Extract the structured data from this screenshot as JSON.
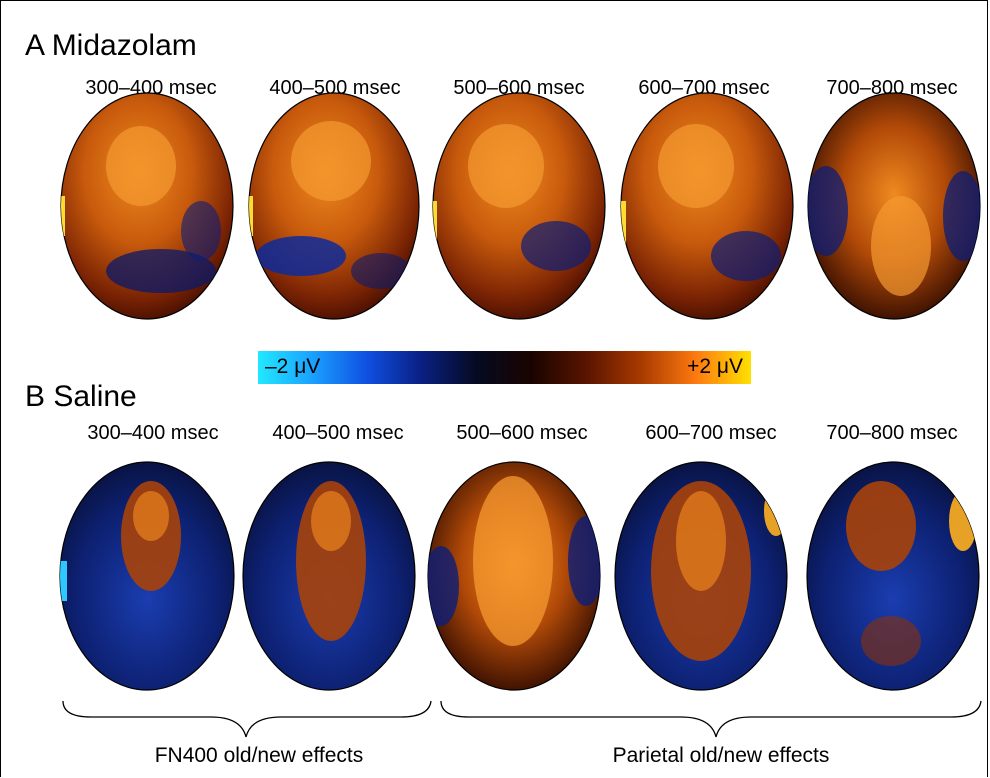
{
  "panels": [
    {
      "id": "a",
      "title": "A Midazolam",
      "time_windows": [
        "300–400 msec",
        "400–500 msec",
        "500–600 msec",
        "600–700 msec",
        "700–800 msec"
      ]
    },
    {
      "id": "b",
      "title": "B Saline",
      "time_windows": [
        "300–400 msec",
        "400–500 msec",
        "500–600 msec",
        "600–700 msec",
        "700–800 msec"
      ]
    }
  ],
  "colorbar": {
    "min_label": "–2 μV",
    "max_label": "+2 μV",
    "colors": [
      "#22e8ff",
      "#1aa0ff",
      "#0f4fe0",
      "#0a1f80",
      "#050a20",
      "#1a0400",
      "#5a1400",
      "#a83a00",
      "#ff7a10",
      "#ffe000"
    ]
  },
  "effects": {
    "fn400": "FN400 old/new effects",
    "parietal": "Parietal old/new effects"
  }
}
